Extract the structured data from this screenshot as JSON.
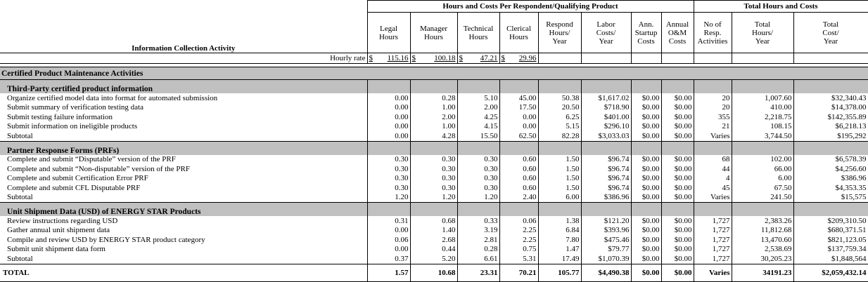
{
  "header": {
    "group_costs": "Hours and Costs Per Respondent/Qualifying Product",
    "group_totals": "Total Hours and Costs",
    "activity_label": "Information Collection Activity",
    "columns": [
      [
        "Legal",
        "Hours"
      ],
      [
        "Manager",
        "Hours"
      ],
      [
        "Technical",
        "Hours"
      ],
      [
        "Clerical",
        "Hours"
      ],
      [
        "Respond",
        "Hours/",
        "Year"
      ],
      [
        "Labor",
        "Costs/",
        "Year"
      ],
      [
        "Ann.",
        "Startup",
        "Costs"
      ],
      [
        "Annual",
        "O&M",
        "Costs"
      ],
      [
        "No of",
        "Resp.",
        "Activities"
      ],
      [
        "Total",
        "Hours/",
        "Year"
      ],
      [
        "Total",
        "Cost/",
        "Year"
      ]
    ]
  },
  "hourly_rate": {
    "label": "Hourly rate",
    "rates": [
      [
        "$",
        "115.16"
      ],
      [
        "$",
        "100.18"
      ],
      [
        "$",
        "47.21"
      ],
      [
        "$",
        "29.96"
      ]
    ]
  },
  "sections": [
    {
      "title": "Certified Product Maintenance Activities",
      "groups": [
        {
          "title": "Third-Party certified product information",
          "rows": [
            [
              "Organize certified model data into format for automated submission",
              "0.00",
              "0.28",
              "5.10",
              "45.00",
              "50.38",
              "$1,617.02",
              "$0.00",
              "$0.00",
              "20",
              "1,007.60",
              "$32,340.43"
            ],
            [
              "Submit summary of verification testing data",
              "0.00",
              "1.00",
              "2.00",
              "17.50",
              "20.50",
              "$718.90",
              "$0.00",
              "$0.00",
              "20",
              "410.00",
              "$14,378.00"
            ],
            [
              "Submit testing failure information",
              "0.00",
              "2.00",
              "4.25",
              "0.00",
              "6.25",
              "$401.00",
              "$0.00",
              "$0.00",
              "355",
              "2,218.75",
              "$142,355.89"
            ],
            [
              "Submit information on ineligible products",
              "0.00",
              "1.00",
              "4.15",
              "0.00",
              "5.15",
              "$296.10",
              "$0.00",
              "$0.00",
              "21",
              "108.15",
              "$6,218.13"
            ],
            [
              "Subtotal",
              "0.00",
              "4.28",
              "15.50",
              "62.50",
              "82.28",
              "$3,033.03",
              "$0.00",
              "$0.00",
              "Varies",
              "3,744.50",
              "$195,292"
            ]
          ]
        },
        {
          "title": "Partner Response Forms (PRFs)",
          "rows": [
            [
              "Complete and submit “Disputable” version of the PRF",
              "0.30",
              "0.30",
              "0.30",
              "0.60",
              "1.50",
              "$96.74",
              "$0.00",
              "$0.00",
              "68",
              "102.00",
              "$6,578.39"
            ],
            [
              "Complete and submit “Non-disputable” version of the PRF",
              "0.30",
              "0.30",
              "0.30",
              "0.60",
              "1.50",
              "$96.74",
              "$0.00",
              "$0.00",
              "44",
              "66.00",
              "$4,256.60"
            ],
            [
              "Complete and submit Certification Error PRF",
              "0.30",
              "0.30",
              "0.30",
              "0.60",
              "1.50",
              "$96.74",
              "$0.00",
              "$0.00",
              "4",
              "6.00",
              "$386.96"
            ],
            [
              "Complete and submit CFL Disputable PRF",
              "0.30",
              "0.30",
              "0.30",
              "0.60",
              "1.50",
              "$96.74",
              "$0.00",
              "$0.00",
              "45",
              "67.50",
              "$4,353.35"
            ],
            [
              "Subtotal",
              "1.20",
              "1.20",
              "1.20",
              "2.40",
              "6.00",
              "$386.96",
              "$0.00",
              "$0.00",
              "Varies",
              "241.50",
              "$15,575"
            ]
          ]
        },
        {
          "title": "Unit Shipment Data (USD) of ENERGY STAR Products",
          "rows": [
            [
              "Review instructions regarding USD",
              "0.31",
              "0.68",
              "0.33",
              "0.06",
              "1.38",
              "$121.20",
              "$0.00",
              "$0.00",
              "1,727",
              "2,383.26",
              "$209,310.50"
            ],
            [
              "Gather annual unit shipment data",
              "0.00",
              "1.40",
              "3.19",
              "2.25",
              "6.84",
              "$393.96",
              "$0.00",
              "$0.00",
              "1,727",
              "11,812.68",
              "$680,371.51"
            ],
            [
              "Compile and review USD by ENERGY STAR product category",
              "0.06",
              "2.68",
              "2.81",
              "2.25",
              "7.80",
              "$475.46",
              "$0.00",
              "$0.00",
              "1,727",
              "13,470.60",
              "$821,123.05"
            ],
            [
              "Submit unit shipment data form",
              "0.00",
              "0.44",
              "0.28",
              "0.75",
              "1.47",
              "$79.77",
              "$0.00",
              "$0.00",
              "1,727",
              "2,538.69",
              "$137,759.34"
            ],
            [
              "Subtotal",
              "0.37",
              "5.20",
              "6.61",
              "5.31",
              "17.49",
              "$1,070.39",
              "$0.00",
              "$0.00",
              "1,727",
              "30,205.23",
              "$1,848,564"
            ]
          ]
        }
      ]
    }
  ],
  "total": [
    "TOTAL",
    "1.57",
    "10.68",
    "23.31",
    "70.21",
    "105.77",
    "$4,490.38",
    "$0.00",
    "$0.00",
    "Varies",
    "34191.23",
    "$2,059,432.14"
  ]
}
